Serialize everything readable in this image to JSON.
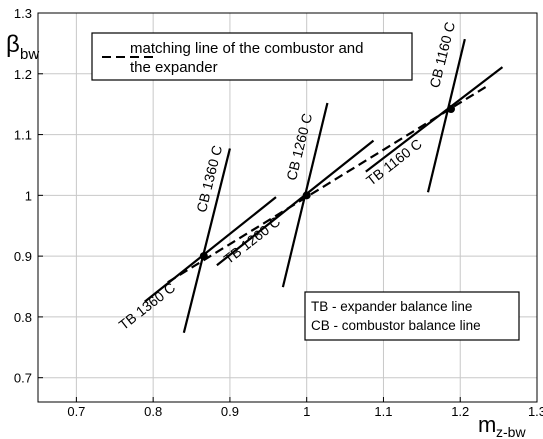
{
  "chart_data": {
    "type": "line",
    "x_label": "m",
    "x_label_sub": "z-bw",
    "y_label": "β",
    "y_label_sub": "bw",
    "xlim": [
      0.65,
      1.3
    ],
    "ylim": [
      0.66,
      1.3
    ],
    "xticks": [
      0.7,
      0.8,
      0.9,
      1,
      1.1,
      1.2,
      1.3
    ],
    "yticks": [
      0.7,
      0.8,
      0.9,
      1,
      1.1,
      1.2,
      1.3
    ],
    "grid": true,
    "series": [
      {
        "name": "matching line of the combustor and the expander",
        "color": "#000000",
        "dash": true,
        "x": [
          0.819,
          1.238
        ],
        "values": [
          0.857,
          1.182
        ]
      },
      {
        "name": "TB 1360 C",
        "color": "#000000",
        "x": [
          0.789,
          0.96
        ],
        "values": [
          0.825,
          0.997
        ]
      },
      {
        "name": "CB 1360 C",
        "color": "#000000",
        "x": [
          0.84,
          0.9
        ],
        "values": [
          0.774,
          1.077
        ]
      },
      {
        "name": "TB 1260 C",
        "color": "#000000",
        "x": [
          0.883,
          1.087
        ],
        "values": [
          0.885,
          1.09
        ]
      },
      {
        "name": "CB 1260 C",
        "color": "#000000",
        "x": [
          0.969,
          1.027
        ],
        "values": [
          0.849,
          1.152
        ]
      },
      {
        "name": "TB 1160 C",
        "color": "#000000",
        "x": [
          1.077,
          1.255
        ],
        "values": [
          1.039,
          1.211
        ]
      },
      {
        "name": "CB 1160 C",
        "color": "#000000",
        "x": [
          1.158,
          1.206
        ],
        "values": [
          1.005,
          1.257
        ]
      }
    ],
    "points": {
      "x": [
        0.866,
        1,
        1.188
      ],
      "values": [
        0.9,
        1,
        1.142
      ]
    },
    "notes": [
      "TB - expander balance line",
      "CB - combustor balance line"
    ]
  }
}
